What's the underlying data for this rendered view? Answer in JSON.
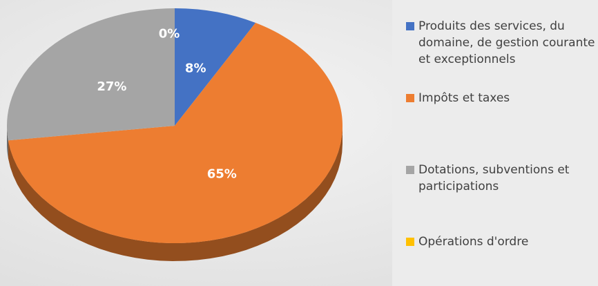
{
  "chart_data": {
    "type": "pie",
    "categories": [
      "Produits des services, du domaine, de gestion courante et exceptionnels",
      "Impôts et taxes",
      "Dotations, subventions et participations",
      "Opérations d'ordre"
    ],
    "values": [
      8,
      65,
      27,
      0
    ],
    "value_labels": [
      "8%",
      "65%",
      "27%",
      "0%"
    ],
    "colors": [
      "#4472c4",
      "#ed7d31",
      "#a5a5a5",
      "#ffc000"
    ],
    "legend": "right"
  }
}
